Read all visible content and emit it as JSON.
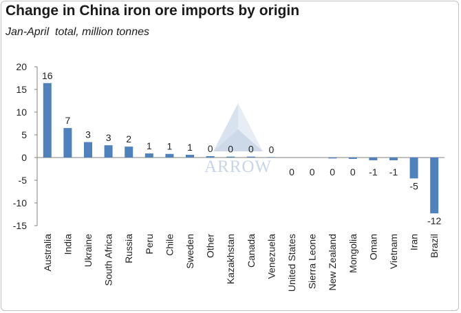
{
  "title": "Change in China iron ore imports by origin",
  "subtitle": "Jan-April  total, million tonnes",
  "watermark": {
    "text": "ARROW"
  },
  "colors": {
    "bar": "#4f81bd",
    "axis": "#808080",
    "text": "#222222"
  },
  "chart_data": {
    "type": "bar",
    "title": "Change in China iron ore imports by origin",
    "subtitle": "Jan-April  total, million tonnes",
    "categories": [
      "Australia",
      "India",
      "Ukraine",
      "South Africa",
      "Russia",
      "Peru",
      "Chile",
      "Sweden",
      "Other",
      "Kazakhstan",
      "Canada",
      "Venezuela",
      "United States",
      "Sierra Leone",
      "New Zealand",
      "Mongolia",
      "Oman",
      "Vietnam",
      "Iran",
      "Brazil"
    ],
    "values": [
      16.4,
      6.5,
      3.4,
      2.7,
      2.4,
      0.9,
      0.8,
      0.6,
      0.3,
      0.2,
      0.2,
      0.1,
      0,
      0,
      -0.2,
      -0.3,
      -0.6,
      -0.6,
      -4.6,
      -12.3
    ],
    "data_labels": [
      "16",
      "7",
      "3",
      "3",
      "2",
      "1",
      "1",
      "1",
      "0",
      "0",
      "0",
      "0",
      "0",
      "0",
      "0",
      "0",
      "-1",
      "-1",
      "-5",
      "-12"
    ],
    "ylim": [
      -15,
      20
    ],
    "yticks": [
      20,
      15,
      10,
      5,
      0,
      -5,
      -10,
      -15
    ],
    "xlabel": "",
    "ylabel": "",
    "grid": false,
    "legend": "none"
  }
}
